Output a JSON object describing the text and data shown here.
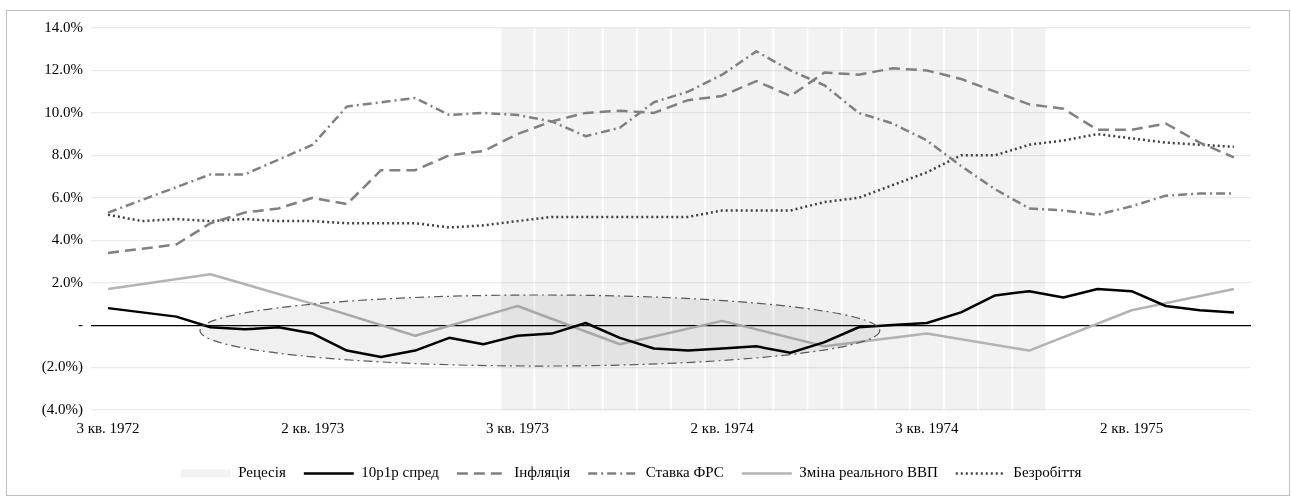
{
  "chart_data": {
    "type": "line",
    "categories": [
      "3 кв. 1972",
      null,
      null,
      null,
      null,
      null,
      "2 кв. 1973",
      null,
      null,
      null,
      null,
      null,
      "3 кв. 1973",
      null,
      null,
      null,
      null,
      null,
      "2 кв. 1974",
      null,
      null,
      null,
      null,
      null,
      "3 кв. 1974",
      null,
      null,
      null,
      null,
      null,
      "2 кв. 1975",
      null,
      null,
      null
    ],
    "series": [
      {
        "name": "Рецесія",
        "type": "bar",
        "color": "#f2f2f2",
        "values": [
          null,
          null,
          null,
          null,
          null,
          null,
          null,
          null,
          null,
          null,
          null,
          null,
          18,
          18,
          18,
          18,
          18,
          18,
          18,
          18,
          18,
          18,
          18,
          18,
          18,
          18,
          18,
          18,
          null,
          null,
          null,
          null,
          null,
          null
        ],
        "base": [
          null,
          null,
          null,
          null,
          null,
          null,
          null,
          null,
          null,
          null,
          null,
          null,
          -4,
          -4,
          -4,
          -4,
          -4,
          -4,
          -4,
          -4,
          -4,
          -4,
          -4,
          -4,
          -4,
          -4,
          -4,
          -4,
          null,
          null,
          null,
          null,
          null,
          null
        ]
      },
      {
        "name": "10р1р спред",
        "color": "#000000",
        "line_style": "solid",
        "values": [
          0.8,
          0.6,
          0.4,
          -0.1,
          -0.2,
          -0.1,
          -0.4,
          -1.2,
          -1.5,
          -1.2,
          -0.6,
          -0.9,
          -0.5,
          -0.4,
          0.1,
          -0.6,
          -1.1,
          -1.2,
          -1.1,
          -1.0,
          -1.3,
          -0.8,
          -0.1,
          0.0,
          0.1,
          0.6,
          1.4,
          1.6,
          1.3,
          1.7,
          1.6,
          0.9,
          0.7,
          0.6
        ]
      },
      {
        "name": "Інфляція",
        "color": "#808080",
        "line_style": "dashed",
        "values": [
          3.4,
          3.6,
          3.8,
          4.8,
          5.3,
          5.5,
          6.0,
          5.7,
          7.3,
          7.3,
          8.0,
          8.2,
          9.0,
          9.6,
          10.0,
          10.1,
          10.0,
          10.6,
          10.8,
          11.5,
          10.8,
          11.9,
          11.8,
          12.1,
          12.0,
          11.6,
          11.0,
          10.4,
          10.2,
          9.2,
          9.2,
          9.5,
          8.6,
          7.9
        ]
      },
      {
        "name": "Ставка ФРС",
        "color": "#808080",
        "line_style": "dashdot",
        "values": [
          5.3,
          5.9,
          6.5,
          7.1,
          7.1,
          7.8,
          8.5,
          10.3,
          10.5,
          10.7,
          9.9,
          10.0,
          9.9,
          9.6,
          8.9,
          9.3,
          10.5,
          11.0,
          11.8,
          12.9,
          12.0,
          11.3,
          10.0,
          9.5,
          8.7,
          7.5,
          6.4,
          5.5,
          5.4,
          5.2,
          5.6,
          6.1,
          6.2,
          6.2
        ]
      },
      {
        "name": "Зміна реального ВВП",
        "color": "#b3b3b3",
        "line_style": "solid",
        "values": [
          1.7,
          null,
          null,
          2.4,
          null,
          null,
          1.0,
          null,
          null,
          -0.5,
          null,
          null,
          0.9,
          null,
          null,
          -0.9,
          null,
          null,
          0.2,
          null,
          null,
          -1.0,
          null,
          null,
          -0.4,
          null,
          null,
          -1.2,
          null,
          null,
          0.7,
          null,
          null,
          1.7
        ]
      },
      {
        "name": "Безробіття",
        "color": "#404040",
        "line_style": "dotted",
        "values": [
          5.2,
          4.9,
          5.0,
          4.9,
          5.0,
          4.9,
          4.9,
          4.8,
          4.8,
          4.8,
          4.6,
          4.7,
          4.9,
          5.1,
          5.1,
          5.1,
          5.1,
          5.1,
          5.4,
          5.4,
          5.4,
          5.8,
          6.0,
          6.6,
          7.2,
          8.0,
          8.0,
          8.5,
          8.7,
          9.0,
          8.8,
          8.6,
          8.5,
          8.4
        ]
      }
    ],
    "ylim": [
      -4,
      14
    ],
    "yticks": [
      {
        "value": -4,
        "label": "(4.0%)"
      },
      {
        "value": -2,
        "label": "(2.0%)"
      },
      {
        "value": 0,
        "label": "-"
      },
      {
        "value": 2,
        "label": "2.0%"
      },
      {
        "value": 4,
        "label": "4.0%"
      },
      {
        "value": 6,
        "label": "6.0%"
      },
      {
        "value": 8,
        "label": "8.0%"
      },
      {
        "value": 10,
        "label": "10.0%"
      },
      {
        "value": 12,
        "label": "12.0%"
      },
      {
        "value": 14,
        "label": "14.0%"
      }
    ],
    "grid": "y",
    "legend": "bottom",
    "marker": "none"
  }
}
